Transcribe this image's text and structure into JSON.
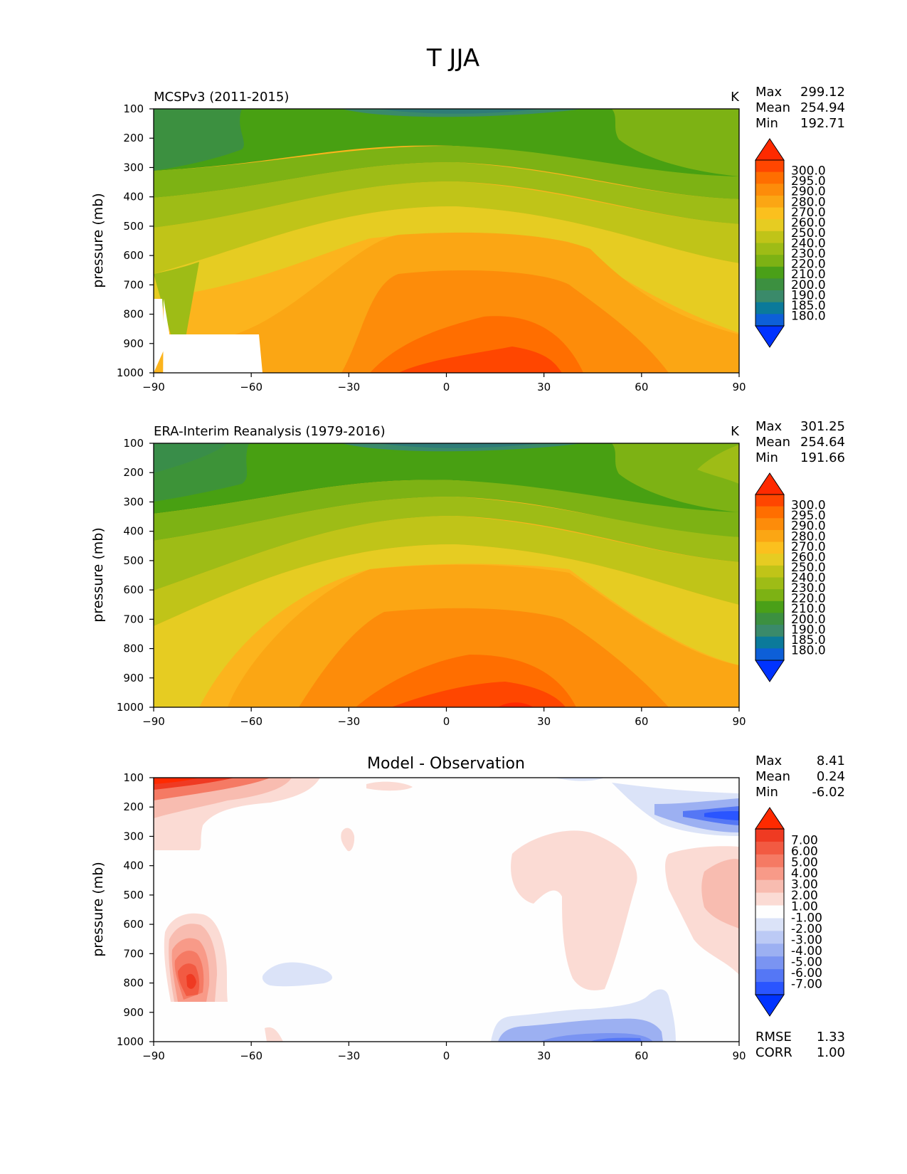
{
  "figure_title": "T JJA",
  "chart_data": [
    {
      "type": "heatmap",
      "title": "MCSPv3 (2011-2015)",
      "units": "K",
      "ylabel": "pressure (mb)",
      "xticks": [
        "−90",
        "−60",
        "−30",
        "0",
        "30",
        "60",
        "90"
      ],
      "yticks": [
        "100",
        "200",
        "300",
        "400",
        "500",
        "600",
        "700",
        "800",
        "900",
        "1000"
      ],
      "xlim": [
        -90,
        90
      ],
      "ylim": [
        1000,
        100
      ],
      "stats": [
        {
          "label": "Max",
          "value": "299.12"
        },
        {
          "label": "Mean",
          "value": "254.94"
        },
        {
          "label": "Min",
          "value": "192.71"
        }
      ],
      "colorbar": {
        "labels": [
          "300.0",
          "295.0",
          "290.0",
          "280.0",
          "270.0",
          "260.0",
          "250.0",
          "240.0",
          "230.0",
          "220.0",
          "210.0",
          "200.0",
          "190.0",
          "185.0",
          "180.0"
        ],
        "colors": [
          "#ff2a00",
          "#ff4f00",
          "#ff7200",
          "#ff9000",
          "#fda20d",
          "#fcb41d",
          "#f9c61f",
          "#e8ce22",
          "#c8c71e",
          "#aac21a",
          "#8dbc16",
          "#5aab1a",
          "#48a012",
          "#3c8c50",
          "#2d7a80",
          "#1e6aa8",
          "#0d55d8",
          "#0033ff"
        ]
      },
      "values_note": ""
    },
    {
      "type": "heatmap",
      "title": "ERA-Interim Reanalysis (1979-2016)",
      "units": "K",
      "ylabel": "pressure (mb)",
      "xticks": [
        "−90",
        "−60",
        "−30",
        "0",
        "30",
        "60",
        "90"
      ],
      "yticks": [
        "100",
        "200",
        "300",
        "400",
        "500",
        "600",
        "700",
        "800",
        "900",
        "1000"
      ],
      "xlim": [
        -90,
        90
      ],
      "ylim": [
        1000,
        100
      ],
      "stats": [
        {
          "label": "Max",
          "value": "301.25"
        },
        {
          "label": "Mean",
          "value": "254.64"
        },
        {
          "label": "Min",
          "value": "191.66"
        }
      ],
      "colorbar": {
        "labels": [
          "300.0",
          "295.0",
          "290.0",
          "280.0",
          "270.0",
          "260.0",
          "250.0",
          "240.0",
          "230.0",
          "220.0",
          "210.0",
          "200.0",
          "190.0",
          "185.0",
          "180.0"
        ]
      }
    },
    {
      "type": "heatmap",
      "title": "Model - Observation",
      "ylabel": "pressure (mb)",
      "xticks": [
        "−90",
        "−60",
        "−30",
        "0",
        "30",
        "60",
        "90"
      ],
      "yticks": [
        "100",
        "200",
        "300",
        "400",
        "500",
        "600",
        "700",
        "800",
        "900",
        "1000"
      ],
      "xlim": [
        -90,
        90
      ],
      "ylim": [
        1000,
        100
      ],
      "stats": [
        {
          "label": "Max",
          "value": "8.41"
        },
        {
          "label": "Mean",
          "value": "0.24"
        },
        {
          "label": "Min",
          "value": "-6.02"
        }
      ],
      "extra_stats": [
        {
          "label": "RMSE",
          "value": "1.33"
        },
        {
          "label": "CORR",
          "value": "1.00"
        }
      ],
      "colorbar": {
        "labels": [
          "7.00",
          "6.00",
          "5.00",
          "4.00",
          "3.00",
          "2.00",
          "1.00",
          "-1.00",
          "-2.00",
          "-3.00",
          "-4.00",
          "-5.00",
          "-6.00",
          "-7.00"
        ]
      }
    }
  ],
  "colors": {
    "temp_scale": [
      "#0033ff",
      "#0d5fd8",
      "#0b7a9a",
      "#3a8a6a",
      "#3c9040",
      "#4aa018",
      "#7db214",
      "#9ebc16",
      "#c0c418",
      "#e6cc22",
      "#fbc01e",
      "#fba614",
      "#fd8c0a",
      "#ff6e00",
      "#ff4600",
      "#ff2a00"
    ],
    "diff_scale": [
      "#0033ff",
      "#2a55ff",
      "#5577f5",
      "#7a94f2",
      "#9cb0f2",
      "#bccaf5",
      "#dbe3f8",
      "#fefefe",
      "#fbdbd4",
      "#f8bcb0",
      "#f89a88",
      "#f57a64",
      "#f25a42",
      "#ef3a22",
      "#ff2a00"
    ]
  }
}
